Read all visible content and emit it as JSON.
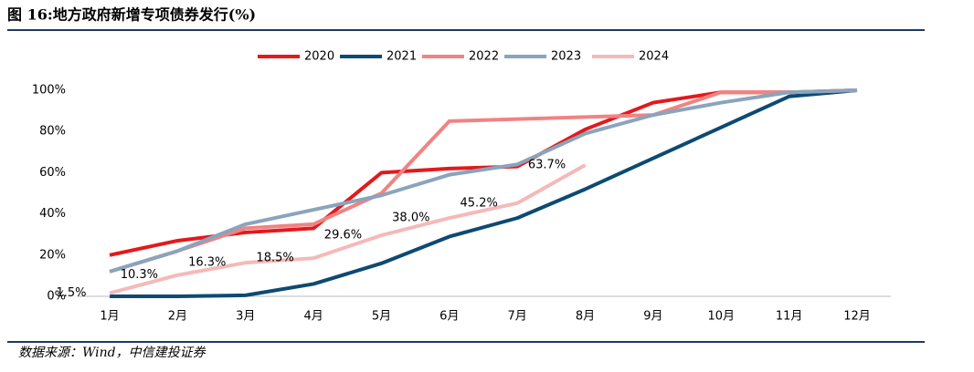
{
  "chart_data": {
    "type": "line",
    "title": "图 16:地方政府新增专项债券发行(%)",
    "source": "数据来源：Wind，中信建投证券",
    "categories": [
      "1月",
      "2月",
      "3月",
      "4月",
      "5月",
      "6月",
      "7月",
      "8月",
      "9月",
      "10月",
      "11月",
      "12月"
    ],
    "ylim": [
      0,
      100
    ],
    "yticks": [
      {
        "value": 0,
        "label": "0%"
      },
      {
        "value": 20,
        "label": "20%"
      },
      {
        "value": 40,
        "label": "40%"
      },
      {
        "value": 60,
        "label": "60%"
      },
      {
        "value": 80,
        "label": "80%"
      },
      {
        "value": 100,
        "label": "100%"
      }
    ],
    "legend": "top",
    "series": [
      {
        "name": "2020",
        "color": "#e3191c",
        "values": [
          20,
          27,
          31,
          33,
          60,
          62,
          63,
          81,
          94,
          99,
          99,
          100
        ]
      },
      {
        "name": "2021",
        "color": "#0d4a72",
        "values": [
          0,
          0,
          0.5,
          6,
          16,
          29,
          38,
          52,
          67,
          82,
          97,
          100
        ]
      },
      {
        "name": "2022",
        "color": "#f08383",
        "values": [
          12,
          22,
          33,
          35,
          50,
          85,
          86,
          87,
          88,
          99,
          99,
          100
        ]
      },
      {
        "name": "2023",
        "color": "#8aa4bc",
        "values": [
          12,
          22,
          35,
          42,
          49,
          59,
          64,
          79,
          88,
          94,
          99,
          100
        ]
      },
      {
        "name": "2024",
        "color": "#f5b9b9",
        "values": [
          1.5,
          10.3,
          16.3,
          18.5,
          29.6,
          38.0,
          45.2,
          63.7,
          null,
          null,
          null,
          null
        ],
        "value_labels": [
          "1.5%",
          "10.3%",
          "16.3%",
          "18.5%",
          "29.6%",
          "38.0%",
          "45.2%",
          "63.7%",
          null,
          null,
          null,
          null
        ]
      }
    ]
  }
}
